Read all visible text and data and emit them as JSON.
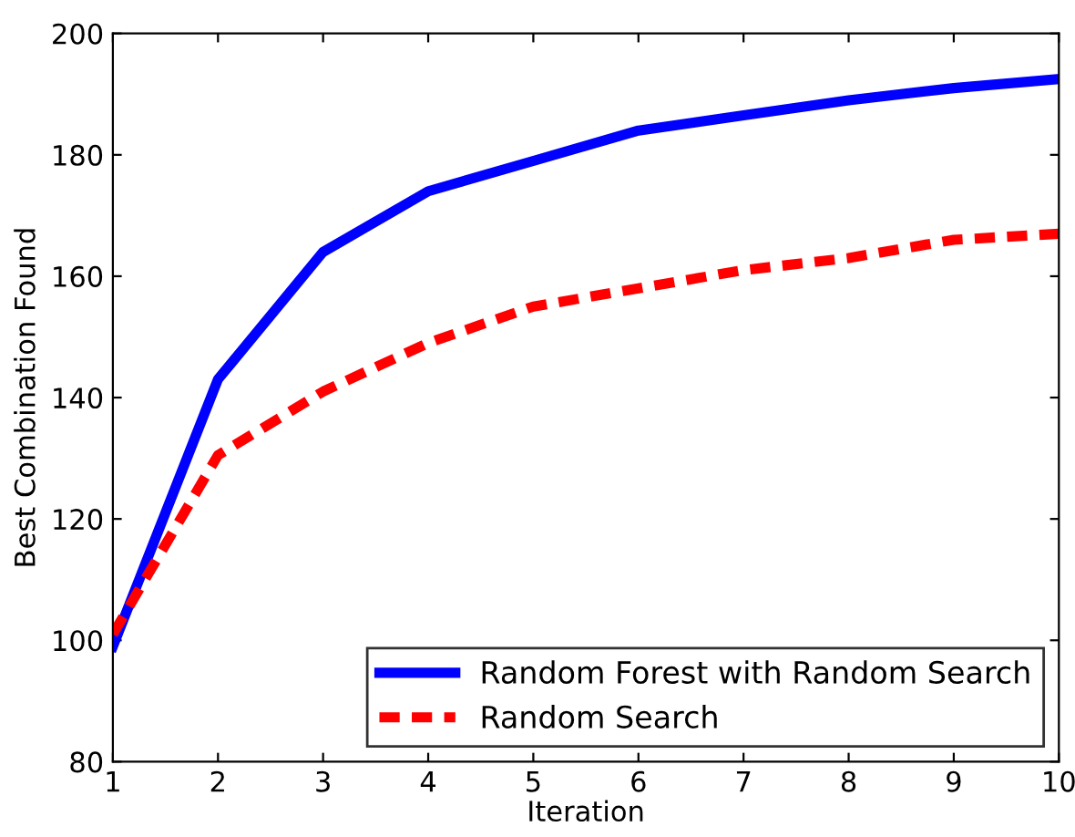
{
  "chart_data": {
    "type": "line",
    "xlabel": "Iteration",
    "ylabel": "Best Combination Found",
    "x": [
      1,
      2,
      3,
      4,
      5,
      6,
      7,
      8,
      9,
      10
    ],
    "series": [
      {
        "name": "Random Forest with Random Search",
        "color": "#0000ff",
        "line_style": "solid",
        "values": [
          99,
          143,
          164,
          174,
          179,
          184,
          186.5,
          189,
          191,
          192.5
        ]
      },
      {
        "name": "Random Search",
        "color": "#ff0000",
        "line_style": "dashed",
        "values": [
          101,
          130.5,
          141,
          149,
          155,
          158,
          161,
          163,
          166,
          167
        ]
      }
    ],
    "xlim": [
      1,
      10
    ],
    "xticks": [
      1,
      2,
      3,
      4,
      5,
      6,
      7,
      8,
      9,
      10
    ],
    "ylim": [
      80,
      200
    ],
    "yticks": [
      80,
      100,
      120,
      140,
      160,
      180,
      200
    ],
    "legend": "bottom right",
    "grid": false
  }
}
